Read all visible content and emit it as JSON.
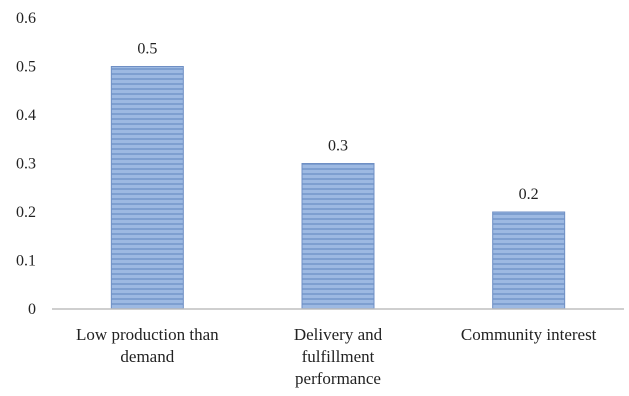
{
  "chart_data": {
    "type": "bar",
    "categories": [
      [
        "Low production than",
        "demand"
      ],
      [
        "Delivery and",
        "fulfillment",
        "performance"
      ],
      [
        "Community interest"
      ]
    ],
    "values": [
      0.5,
      0.3,
      0.2
    ],
    "data_labels": [
      "0.5",
      "0.3",
      "0.2"
    ],
    "y_ticks": [
      "0",
      "0.1",
      "0.2",
      "0.3",
      "0.4",
      "0.5",
      "0.6"
    ],
    "ylim": [
      0,
      0.6
    ],
    "grid": false,
    "legend": "none",
    "title": "",
    "xlabel": "",
    "ylabel": "",
    "colors": {
      "bar_fill": "#9db9e2",
      "bar_stripe": "#7e9fd0",
      "bar_stroke": "#6f8fc4",
      "axis": "#bfbfbf"
    }
  }
}
